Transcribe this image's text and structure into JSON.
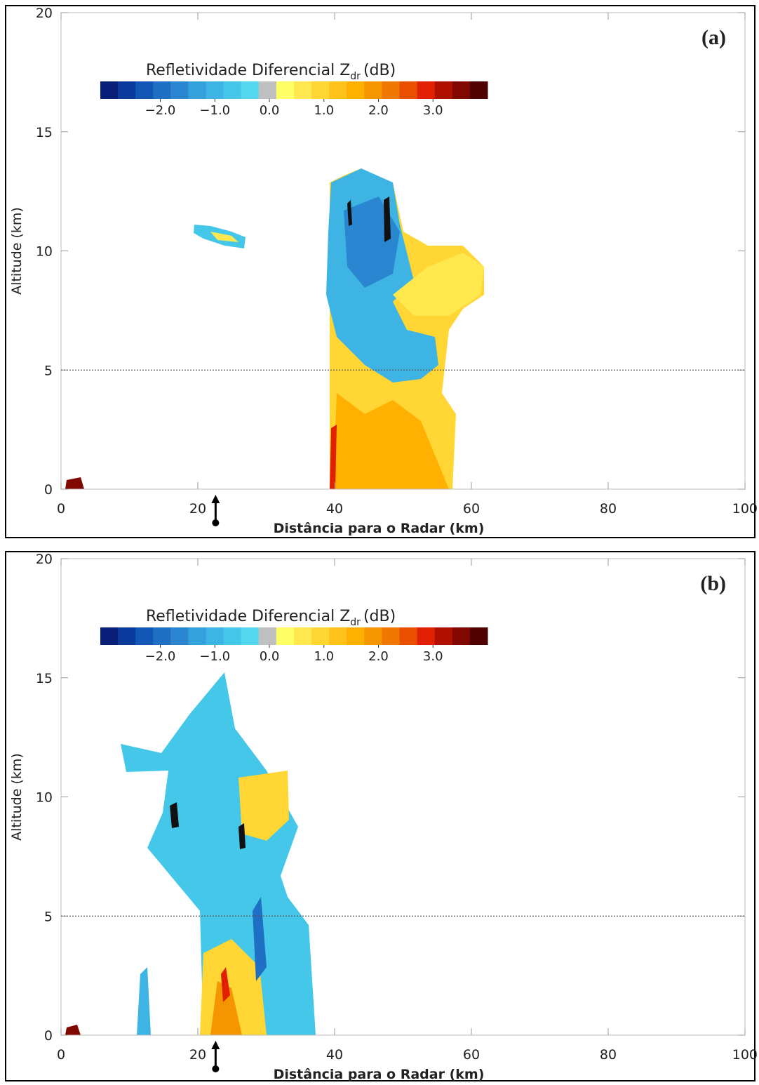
{
  "chart_data": [
    {
      "type": "rhi",
      "panel_label": "(a)",
      "xlabel": "Distância para o Radar (km)",
      "ylabel": "Altitude (km)",
      "xlim": [
        0,
        100
      ],
      "ylim": [
        0,
        20
      ],
      "xticks": [
        0,
        20,
        40,
        60,
        80,
        100
      ],
      "yticks": [
        0,
        5,
        10,
        15,
        20
      ],
      "reference_line": 5,
      "radar_marker_x": 22.6,
      "colorbar": {
        "title": "Refletividade Diferencial Z",
        "title_sub": "dr",
        "title_unit": "(dB)",
        "clim": [
          -3.1,
          4.0
        ],
        "ticks": [
          {
            "value": -2,
            "label": "−2.0"
          },
          {
            "value": -1,
            "label": "−1.0"
          },
          {
            "value": 0,
            "label": "0.0"
          },
          {
            "value": 1,
            "label": "1.0"
          },
          {
            "value": 2,
            "label": "2.0"
          },
          {
            "value": 3,
            "label": "3.0"
          }
        ],
        "colors": [
          "#0a1f7a",
          "#0b3a9c",
          "#1257b5",
          "#1f6fc4",
          "#2a86d0",
          "#34a0dc",
          "#3db4e4",
          "#45c7ea",
          "#55d8ef",
          "#c0c0c0",
          "#ffff66",
          "#ffe84d",
          "#ffd633",
          "#ffc21a",
          "#ffb000",
          "#f59500",
          "#f07800",
          "#e85000",
          "#e02000",
          "#b01000",
          "#800800",
          "#500000"
        ]
      }
    },
    {
      "type": "rhi",
      "panel_label": "(b)",
      "xlabel": "Distância para o Radar (km)",
      "ylabel": "Altitude (km)",
      "xlim": [
        0,
        100
      ],
      "ylim": [
        0,
        20
      ],
      "xticks": [
        0,
        20,
        40,
        60,
        80,
        100
      ],
      "yticks": [
        0,
        5,
        10,
        15,
        20
      ],
      "reference_line": 5,
      "radar_marker_x": 22.6,
      "colorbar": {
        "title": "Refletividade Diferencial Z",
        "title_sub": "dr",
        "title_unit": "(dB)",
        "clim": [
          -3.1,
          4.0
        ],
        "ticks": [
          {
            "value": -2,
            "label": "−2.0"
          },
          {
            "value": -1,
            "label": "−1.0"
          },
          {
            "value": 0,
            "label": "0.0"
          },
          {
            "value": 1,
            "label": "1.0"
          },
          {
            "value": 2,
            "label": "2.0"
          },
          {
            "value": 3,
            "label": "3.0"
          }
        ],
        "colors": [
          "#0a1f7a",
          "#0b3a9c",
          "#1257b5",
          "#1f6fc4",
          "#2a86d0",
          "#34a0dc",
          "#3db4e4",
          "#45c7ea",
          "#55d8ef",
          "#c0c0c0",
          "#ffff66",
          "#ffe84d",
          "#ffd633",
          "#ffc21a",
          "#ffb000",
          "#f59500",
          "#f07800",
          "#e85000",
          "#e02000",
          "#b01000",
          "#800800",
          "#500000"
        ]
      }
    }
  ]
}
